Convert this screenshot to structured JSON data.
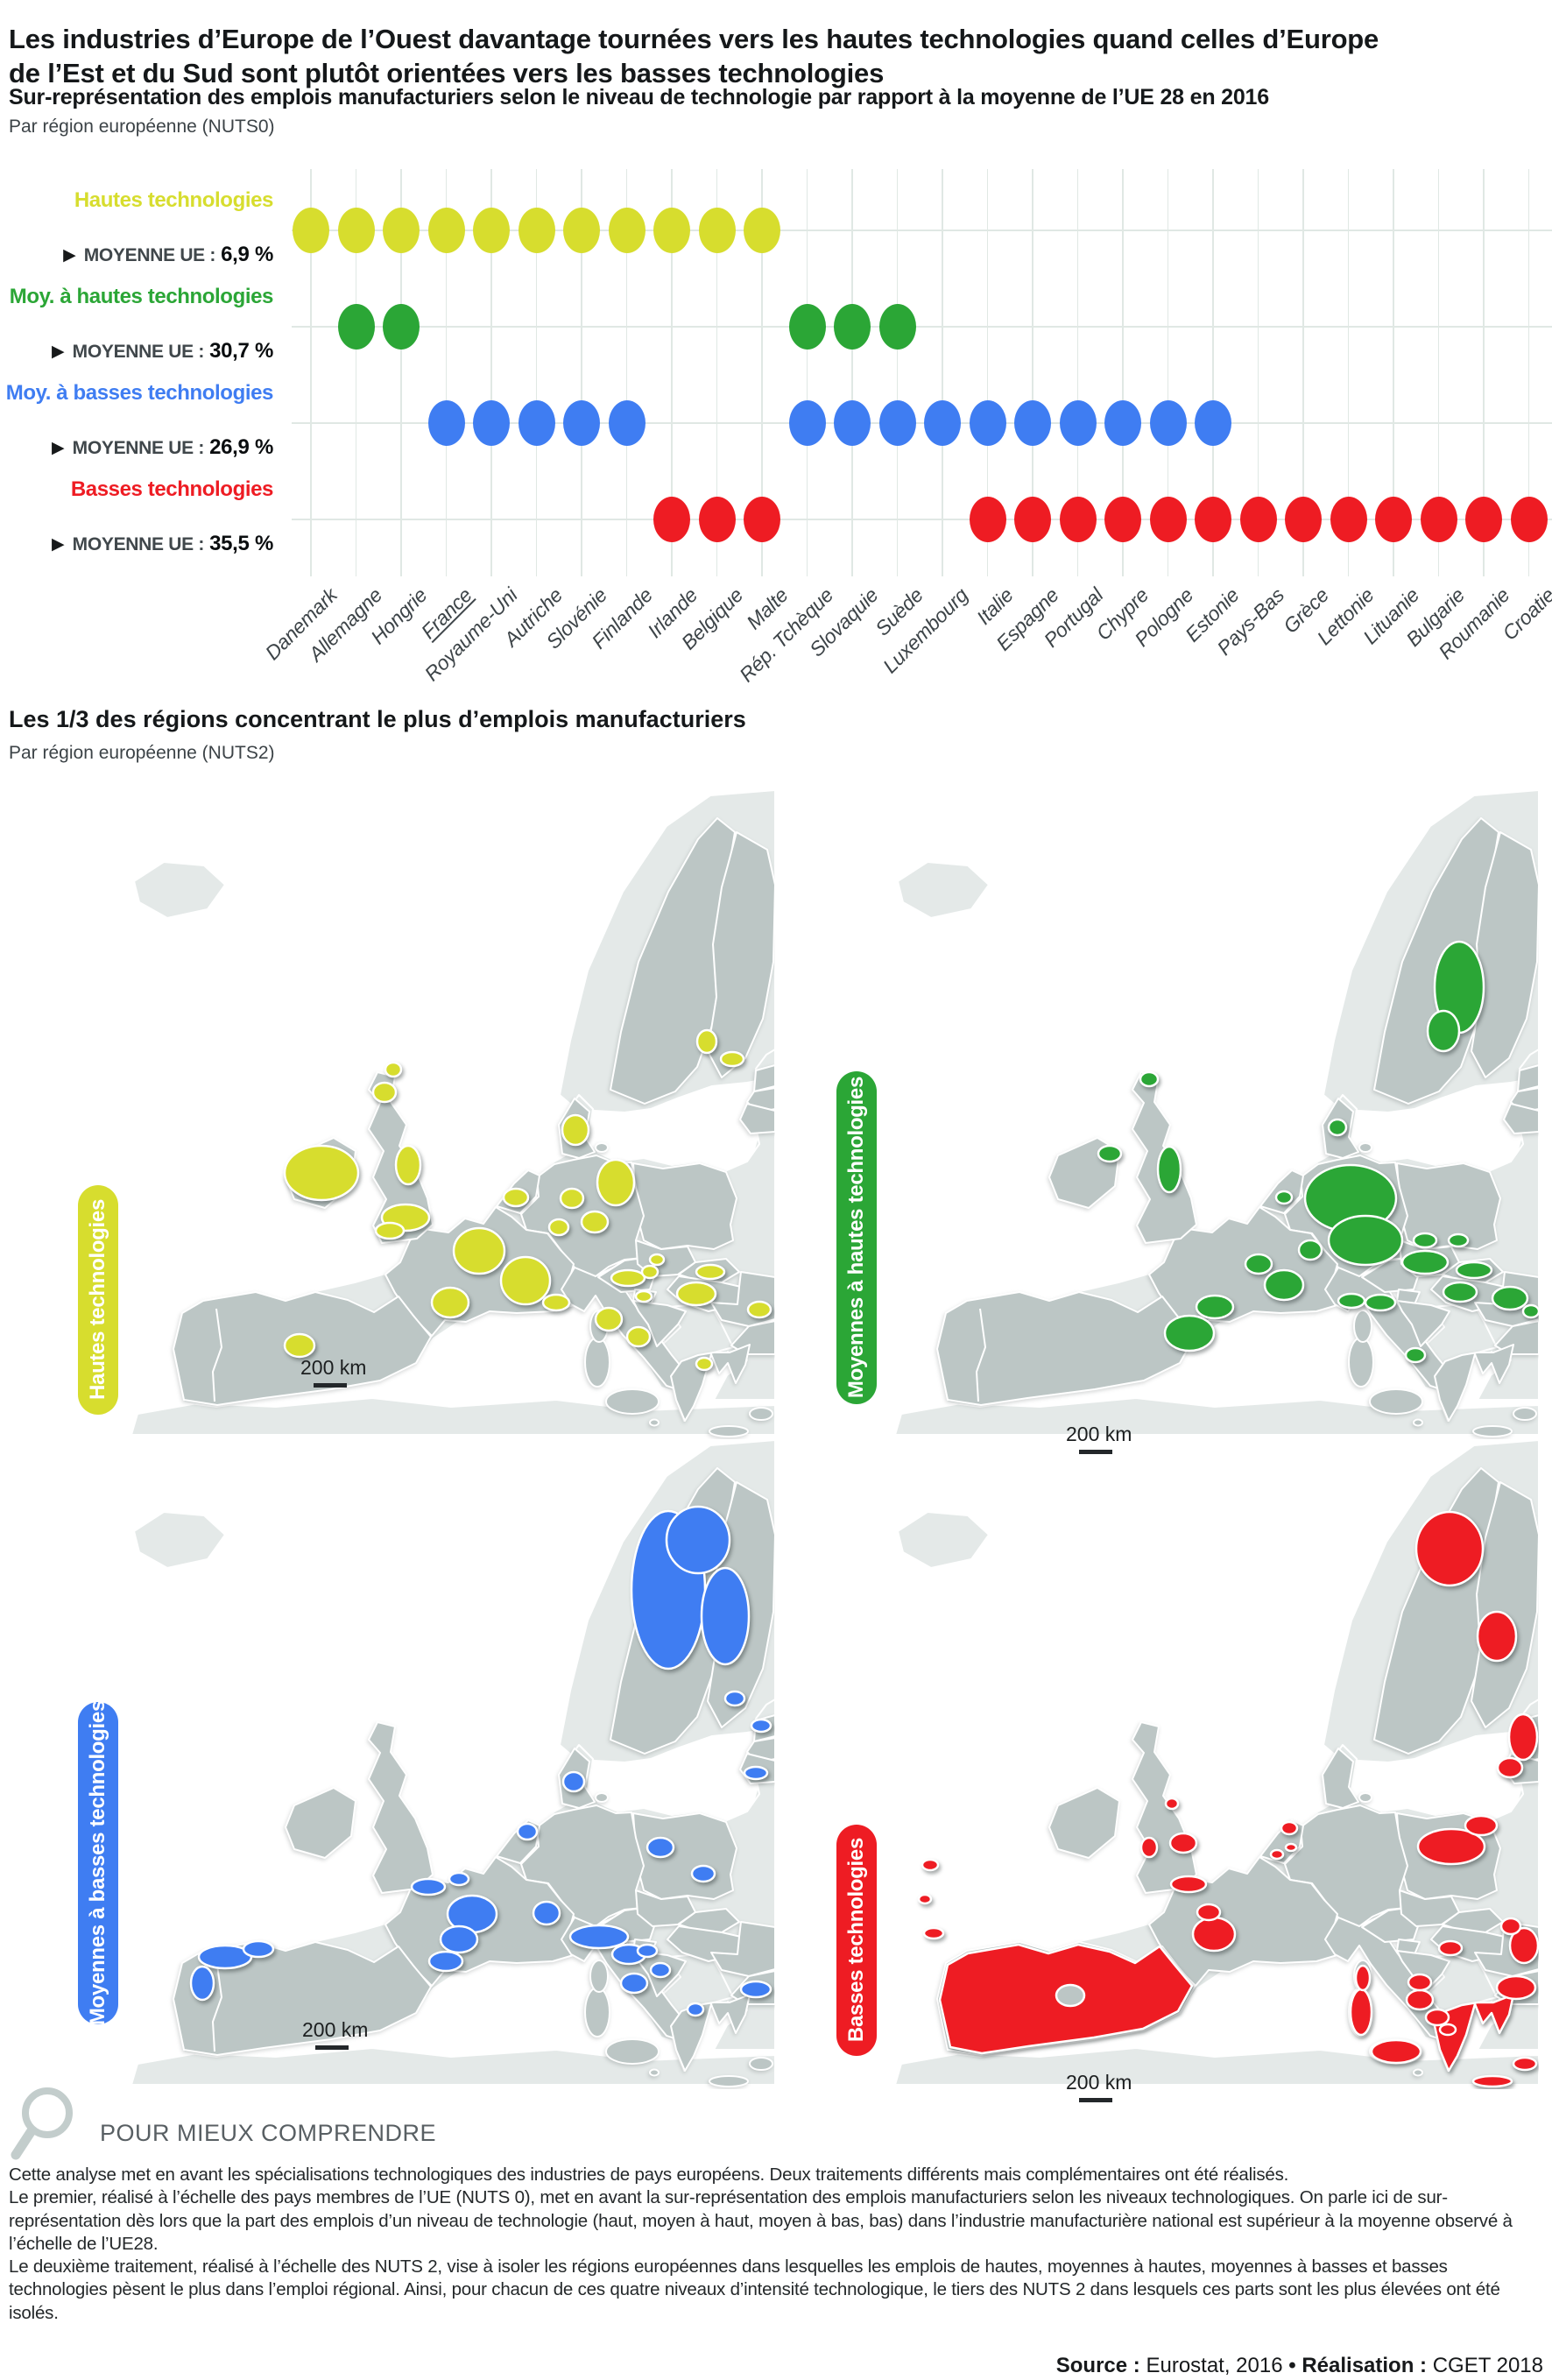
{
  "header": {
    "title": "Les industries d’Europe de l’Ouest davantage tournées vers les hautes technologies quand celles d’Europe de l’Est et du Sud sont plutôt orientées vers les basses technologies"
  },
  "chart_data": {
    "type": "dot-matrix",
    "title": "Sur-représentation des emplois manufacturiers selon le niveau de technologie par rapport à la moyenne de l’UE 28 en 2016",
    "subtitle": "Par région européenne (NUTS0)",
    "categories": [
      "Danemark",
      "Allemagne",
      "Hongrie",
      "France",
      "Royaume-Uni",
      "Autriche",
      "Slovénie",
      "Finlande",
      "Irlande",
      "Belgique",
      "Malte",
      "Rép. Tchèque",
      "Slovaquie",
      "Suède",
      "Luxembourg",
      "Italie",
      "Espagne",
      "Portugal",
      "Chypre",
      "Pologne",
      "Estonie",
      "Pays-Bas",
      "Grèce",
      "Lettonie",
      "Lituanie",
      "Bulgarie",
      "Roumanie",
      "Croatie"
    ],
    "underlined_categories": [
      "France"
    ],
    "legend_position": "left",
    "grid": true,
    "levels": [
      {
        "label": "Hautes technologies",
        "color": "#d7dd2e",
        "mean_label": "MOYENNE UE :",
        "mean_value": "6,9 %",
        "countries": [
          "Danemark",
          "Allemagne",
          "Hongrie",
          "France",
          "Royaume-Uni",
          "Autriche",
          "Slovénie",
          "Finlande",
          "Irlande",
          "Belgique",
          "Malte"
        ]
      },
      {
        "label": "Moy. à hautes technologies",
        "color": "#2ba636",
        "mean_label": "MOYENNE UE :",
        "mean_value": "30,7 %",
        "countries": [
          "Allemagne",
          "Hongrie",
          "Rép. Tchèque",
          "Slovaquie",
          "Suède"
        ]
      },
      {
        "label": "Moy. à basses technologies",
        "color": "#3f7df2",
        "mean_label": "MOYENNE UE :",
        "mean_value": "26,9 %",
        "countries": [
          "France",
          "Royaume-Uni",
          "Autriche",
          "Slovénie",
          "Finlande",
          "Rép. Tchèque",
          "Slovaquie",
          "Suède",
          "Luxembourg",
          "Italie",
          "Espagne",
          "Portugal",
          "Chypre",
          "Pologne",
          "Estonie"
        ]
      },
      {
        "label": "Basses technologies",
        "color": "#ee1c23",
        "mean_label": "MOYENNE UE :",
        "mean_value": "35,5 %",
        "countries": [
          "Irlande",
          "Belgique",
          "Malte",
          "Italie",
          "Espagne",
          "Portugal",
          "Chypre",
          "Pologne",
          "Estonie",
          "Pays-Bas",
          "Grèce",
          "Lettonie",
          "Lituanie",
          "Bulgarie",
          "Roumanie",
          "Croatie"
        ]
      }
    ]
  },
  "maps": {
    "title": "Les 1/3 des régions concentrant le plus d’emplois manufacturiers",
    "subtitle": "Par région européenne (NUTS2)",
    "scale_label": "200 km",
    "items": [
      {
        "id": "hautes",
        "label": "Hautes technologies",
        "color": "#d7dd2e"
      },
      {
        "id": "moy-hautes",
        "label": "Moyennes à hautes technologies",
        "color": "#2ba636"
      },
      {
        "id": "moy-basses",
        "label": "Moyennes à basses technologies",
        "color": "#3f7df2"
      },
      {
        "id": "basses",
        "label": "Basses technologies",
        "color": "#ee1c23"
      }
    ]
  },
  "footer": {
    "kicker": "POUR MIEUX COMPRENDRE",
    "paragraphs": [
      "Cette analyse met en avant les spécialisations technologiques des industries de pays européens. Deux traitements différents mais complémentaires ont été réalisés.",
      "Le premier, réalisé à l’échelle des pays membres de l’UE (NUTS 0), met en avant la sur-représentation des emplois manufacturiers selon les niveaux technologiques. On parle ici de sur-représentation dès lors que la part des emplois d’un niveau de technologie (haut, moyen à haut, moyen à bas, bas) dans l’industrie manufacturière national est supérieur à la moyenne observé à l’échelle de l’UE28.",
      "Le deuxième traitement, réalisé à l’échelle des NUTS 2, vise à isoler les régions européennes dans lesquelles les emplois de hautes, moyennes à hautes, moyennes à basses et basses technologies pèsent le plus dans l’emploi régional. Ainsi, pour chacun de ces quatre niveaux d’intensité technologique, le tiers des NUTS 2 dans lesquels ces parts sont les plus élevées ont été isolés."
    ],
    "source": {
      "label1": "Source :",
      "value1": "Eurostat, 2016",
      "sep": "•",
      "label2": "Réalisation :",
      "value2": "CGET 2018"
    }
  }
}
